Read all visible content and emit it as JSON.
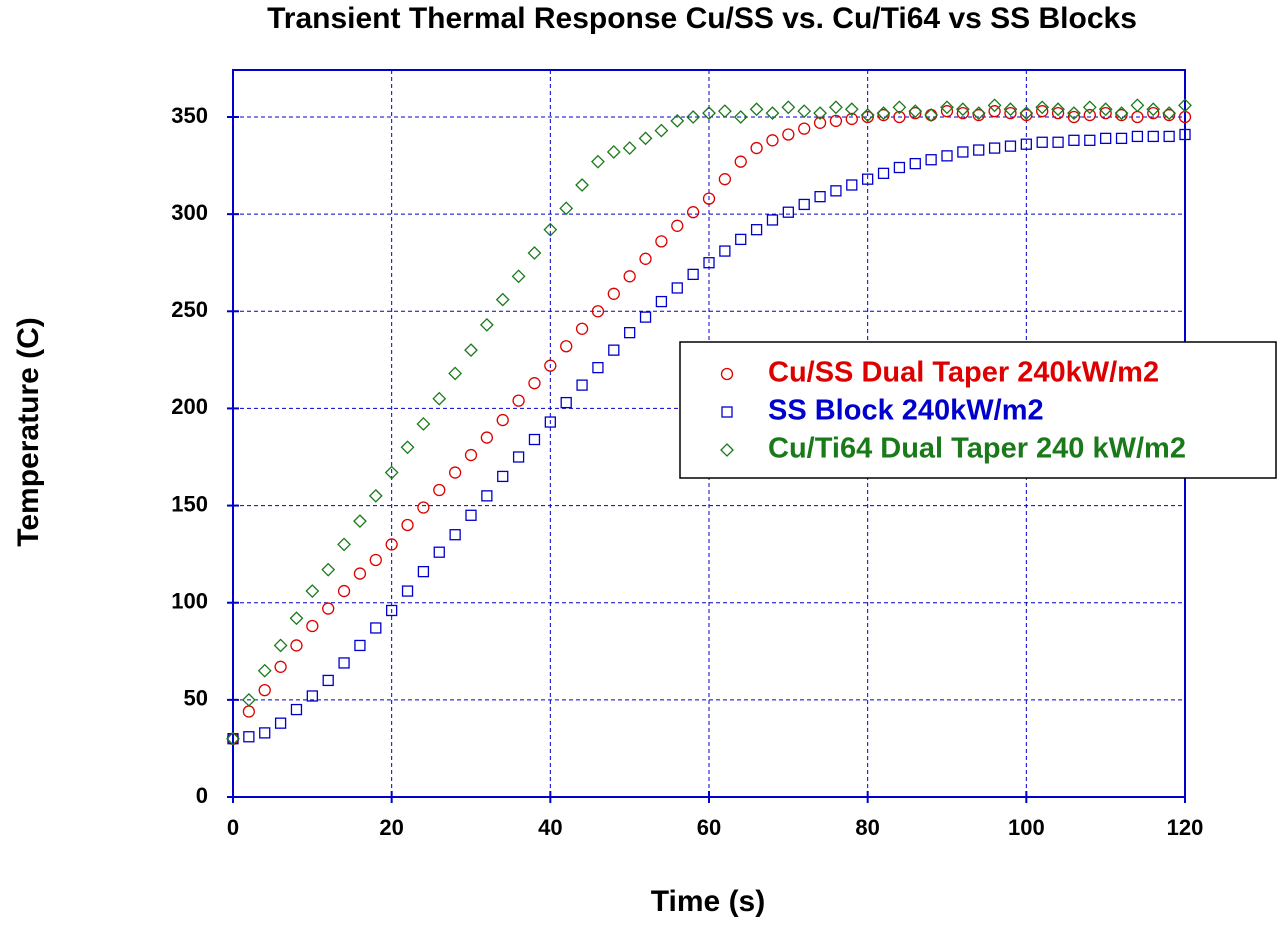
{
  "chart_data": {
    "type": "scatter",
    "title": "Transient Thermal Response Cu/SS vs. Cu/Ti64 vs SS Blocks",
    "xlabel": "Time (s)",
    "ylabel": "Temperature (C)",
    "x": [
      0,
      2,
      4,
      6,
      8,
      10,
      12,
      14,
      16,
      18,
      20,
      22,
      24,
      26,
      28,
      30,
      32,
      34,
      36,
      38,
      40,
      42,
      44,
      46,
      48,
      50,
      52,
      54,
      56,
      58,
      60,
      62,
      64,
      66,
      68,
      70,
      72,
      74,
      76,
      78,
      80,
      82,
      84,
      86,
      88,
      90,
      92,
      94,
      96,
      98,
      100,
      102,
      104,
      106,
      108,
      110,
      112,
      114,
      116,
      118,
      120
    ],
    "series": [
      {
        "name": "Cu/SS Dual Taper 240kW/m2",
        "color": "#dd0000",
        "marker": "circle",
        "values": [
          30,
          44,
          55,
          67,
          78,
          88,
          97,
          106,
          115,
          122,
          130,
          140,
          149,
          158,
          167,
          176,
          185,
          194,
          204,
          213,
          222,
          232,
          241,
          250,
          259,
          268,
          277,
          286,
          294,
          301,
          308,
          318,
          327,
          334,
          338,
          341,
          344,
          347,
          348,
          349,
          350,
          351,
          350,
          352,
          351,
          353,
          352,
          351,
          353,
          352,
          351,
          353,
          352,
          350,
          351,
          352,
          351,
          350,
          352,
          351,
          350
        ]
      },
      {
        "name": "SS Block 240kW/m2",
        "color": "#0000cc",
        "marker": "square",
        "values": [
          30,
          31,
          33,
          38,
          45,
          52,
          60,
          69,
          78,
          87,
          96,
          106,
          116,
          126,
          135,
          145,
          155,
          165,
          175,
          184,
          193,
          203,
          212,
          221,
          230,
          239,
          247,
          255,
          262,
          269,
          275,
          281,
          287,
          292,
          297,
          301,
          305,
          309,
          312,
          315,
          318,
          321,
          324,
          326,
          328,
          330,
          332,
          333,
          334,
          335,
          336,
          337,
          337,
          338,
          338,
          339,
          339,
          340,
          340,
          340,
          341
        ]
      },
      {
        "name": "Cu/Ti64 Dual Taper 240 kW/m2",
        "color": "#1a7a1a",
        "marker": "diamond",
        "values": [
          30,
          50,
          65,
          78,
          92,
          106,
          117,
          130,
          142,
          155,
          167,
          180,
          192,
          205,
          218,
          230,
          243,
          256,
          268,
          280,
          292,
          303,
          315,
          327,
          332,
          334,
          339,
          343,
          348,
          350,
          352,
          353,
          350,
          354,
          352,
          355,
          353,
          352,
          355,
          354,
          351,
          352,
          355,
          353,
          351,
          355,
          354,
          352,
          356,
          354,
          352,
          355,
          354,
          352,
          355,
          354,
          352,
          356,
          354,
          352,
          356
        ]
      }
    ],
    "xlim": [
      0,
      120
    ],
    "xticks": [
      0,
      20,
      40,
      60,
      80,
      100,
      120
    ],
    "ylim": [
      0,
      350
    ],
    "yticks": [
      0,
      50,
      100,
      150,
      200,
      250,
      300,
      350
    ],
    "grid": true,
    "legend": "center right"
  }
}
